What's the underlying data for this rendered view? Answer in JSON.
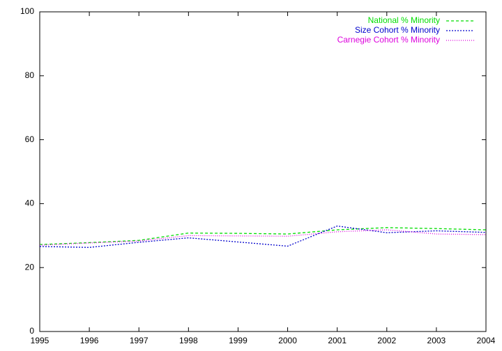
{
  "chart_data": {
    "type": "line",
    "x": [
      1995,
      1996,
      1997,
      1998,
      1999,
      2000,
      2001,
      2002,
      2003,
      2004
    ],
    "series": [
      {
        "name": "National % Minority",
        "color": "#00dd00",
        "dash": "4,3",
        "values": [
          27.2,
          27.8,
          28.5,
          30.8,
          30.7,
          30.5,
          31.8,
          32.5,
          32.2,
          31.8
        ]
      },
      {
        "name": "Size Cohort % Minority",
        "color": "#0000cc",
        "dash": "2,2",
        "values": [
          26.6,
          26.3,
          27.9,
          29.3,
          28.0,
          26.7,
          33.0,
          30.9,
          31.5,
          31.0
        ]
      },
      {
        "name": "Carnegie Cohort % Minority",
        "color": "#dd00dd",
        "dash": "1,2",
        "values": [
          27.0,
          27.7,
          28.3,
          30.0,
          29.9,
          29.8,
          31.2,
          31.8,
          30.5,
          30.3
        ]
      }
    ],
    "xlim": [
      1995,
      2004
    ],
    "xticks": [
      1995,
      1996,
      1997,
      1998,
      1999,
      2000,
      2001,
      2002,
      2003,
      2004
    ],
    "ylim": [
      0,
      100
    ],
    "yticks": [
      0,
      20,
      40,
      60,
      80,
      100
    ],
    "legend": "top-right"
  }
}
